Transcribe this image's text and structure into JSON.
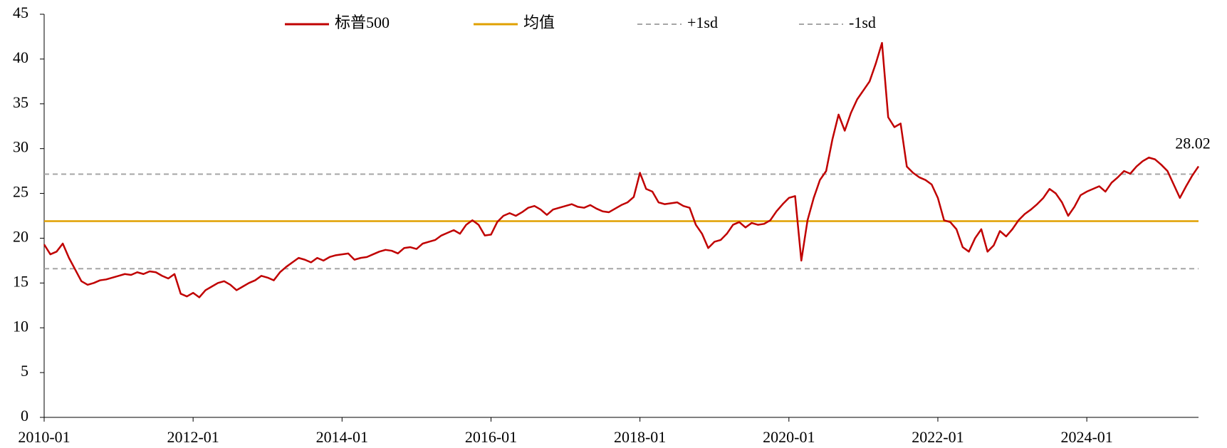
{
  "chart_data": {
    "type": "line",
    "xlim": [
      "2010-01",
      "2025-07"
    ],
    "xticks": [
      "2010-01",
      "2012-01",
      "2014-01",
      "2016-01",
      "2018-01",
      "2020-01",
      "2022-01",
      "2024-01"
    ],
    "ylim": [
      0,
      45
    ],
    "yticks": [
      0,
      5,
      10,
      15,
      20,
      25,
      30,
      35,
      40,
      45
    ],
    "grid": false,
    "legend": "top",
    "x": [
      "2010-01",
      "2010-02",
      "2010-03",
      "2010-04",
      "2010-05",
      "2010-06",
      "2010-07",
      "2010-08",
      "2010-09",
      "2010-10",
      "2010-11",
      "2010-12",
      "2011-01",
      "2011-02",
      "2011-03",
      "2011-04",
      "2011-05",
      "2011-06",
      "2011-07",
      "2011-08",
      "2011-09",
      "2011-10",
      "2011-11",
      "2011-12",
      "2012-01",
      "2012-02",
      "2012-03",
      "2012-04",
      "2012-05",
      "2012-06",
      "2012-07",
      "2012-08",
      "2012-09",
      "2012-10",
      "2012-11",
      "2012-12",
      "2013-01",
      "2013-02",
      "2013-03",
      "2013-04",
      "2013-05",
      "2013-06",
      "2013-07",
      "2013-08",
      "2013-09",
      "2013-10",
      "2013-11",
      "2013-12",
      "2014-01",
      "2014-02",
      "2014-03",
      "2014-04",
      "2014-05",
      "2014-06",
      "2014-07",
      "2014-08",
      "2014-09",
      "2014-10",
      "2014-11",
      "2014-12",
      "2015-01",
      "2015-02",
      "2015-03",
      "2015-04",
      "2015-05",
      "2015-06",
      "2015-07",
      "2015-08",
      "2015-09",
      "2015-10",
      "2015-11",
      "2015-12",
      "2016-01",
      "2016-02",
      "2016-03",
      "2016-04",
      "2016-05",
      "2016-06",
      "2016-07",
      "2016-08",
      "2016-09",
      "2016-10",
      "2016-11",
      "2016-12",
      "2017-01",
      "2017-02",
      "2017-03",
      "2017-04",
      "2017-05",
      "2017-06",
      "2017-07",
      "2017-08",
      "2017-09",
      "2017-10",
      "2017-11",
      "2017-12",
      "2018-01",
      "2018-02",
      "2018-03",
      "2018-04",
      "2018-05",
      "2018-06",
      "2018-07",
      "2018-08",
      "2018-09",
      "2018-10",
      "2018-11",
      "2018-12",
      "2019-01",
      "2019-02",
      "2019-03",
      "2019-04",
      "2019-05",
      "2019-06",
      "2019-07",
      "2019-08",
      "2019-09",
      "2019-10",
      "2019-11",
      "2019-12",
      "2020-01",
      "2020-02",
      "2020-03",
      "2020-04",
      "2020-05",
      "2020-06",
      "2020-07",
      "2020-08",
      "2020-09",
      "2020-10",
      "2020-11",
      "2020-12",
      "2021-01",
      "2021-02",
      "2021-03",
      "2021-04",
      "2021-05",
      "2021-06",
      "2021-07",
      "2021-08",
      "2021-09",
      "2021-10",
      "2021-11",
      "2021-12",
      "2022-01",
      "2022-02",
      "2022-03",
      "2022-04",
      "2022-05",
      "2022-06",
      "2022-07",
      "2022-08",
      "2022-09",
      "2022-10",
      "2022-11",
      "2022-12",
      "2023-01",
      "2023-02",
      "2023-03",
      "2023-04",
      "2023-05",
      "2023-06",
      "2023-07",
      "2023-08",
      "2023-09",
      "2023-10",
      "2023-11",
      "2023-12",
      "2024-01",
      "2024-02",
      "2024-03",
      "2024-04",
      "2024-05",
      "2024-06",
      "2024-07",
      "2024-08",
      "2024-09",
      "2024-10",
      "2024-11",
      "2024-12",
      "2025-01",
      "2025-02",
      "2025-03",
      "2025-04",
      "2025-05",
      "2025-06",
      "2025-07"
    ],
    "series": [
      {
        "name": "标普500",
        "color": "#c00000",
        "values": [
          19.3,
          18.2,
          18.5,
          19.4,
          17.8,
          16.5,
          15.2,
          14.8,
          15.0,
          15.3,
          15.4,
          15.6,
          15.8,
          16.0,
          15.9,
          16.2,
          16.0,
          16.3,
          16.2,
          15.8,
          15.5,
          16.0,
          13.8,
          13.5,
          13.9,
          13.4,
          14.2,
          14.6,
          15.0,
          15.2,
          14.8,
          14.2,
          14.6,
          15.0,
          15.3,
          15.8,
          15.6,
          15.3,
          16.2,
          16.8,
          17.3,
          17.8,
          17.6,
          17.3,
          17.8,
          17.5,
          17.9,
          18.1,
          18.2,
          18.3,
          17.6,
          17.8,
          17.9,
          18.2,
          18.5,
          18.7,
          18.6,
          18.3,
          18.9,
          19.0,
          18.8,
          19.4,
          19.6,
          19.8,
          20.3,
          20.6,
          20.9,
          20.5,
          21.5,
          22.0,
          21.5,
          20.3,
          20.4,
          21.8,
          22.5,
          22.8,
          22.5,
          22.9,
          23.4,
          23.6,
          23.2,
          22.6,
          23.2,
          23.4,
          23.6,
          23.8,
          23.5,
          23.4,
          23.7,
          23.3,
          23.0,
          22.9,
          23.3,
          23.7,
          24.0,
          24.6,
          27.3,
          25.5,
          25.2,
          24.0,
          23.8,
          23.9,
          24.0,
          23.6,
          23.4,
          21.5,
          20.5,
          18.9,
          19.6,
          19.8,
          20.5,
          21.5,
          21.8,
          21.2,
          21.7,
          21.5,
          21.6,
          22.0,
          23.0,
          23.8,
          24.5,
          24.7,
          17.5,
          22.0,
          24.5,
          26.5,
          27.5,
          31.0,
          33.8,
          32.0,
          34.0,
          35.5,
          36.5,
          37.5,
          39.5,
          41.8,
          33.5,
          32.4,
          32.8,
          28.0,
          27.3,
          26.8,
          26.5,
          26.0,
          24.5,
          22.0,
          21.8,
          21.0,
          19.0,
          18.5,
          20.0,
          21.0,
          18.5,
          19.2,
          20.8,
          20.2,
          21.0,
          22.0,
          22.7,
          23.2,
          23.8,
          24.5,
          25.5,
          25.0,
          24.0,
          22.5,
          23.5,
          24.8,
          25.2,
          25.5,
          25.8,
          25.2,
          26.2,
          26.8,
          27.5,
          27.2,
          28.0,
          28.6,
          29.0,
          28.8,
          28.2,
          27.5,
          26.0,
          24.5,
          25.8,
          27.0,
          28.02
        ]
      }
    ],
    "lines": [
      {
        "name": "均值",
        "value": 21.9,
        "color": "#e0a000",
        "dashed": false
      },
      {
        "name": "+1sd",
        "value": 27.15,
        "color": "#a6a6a6",
        "dashed": true
      },
      {
        "name": "-1sd",
        "value": 16.6,
        "color": "#a6a6a6",
        "dashed": true
      }
    ]
  }
}
